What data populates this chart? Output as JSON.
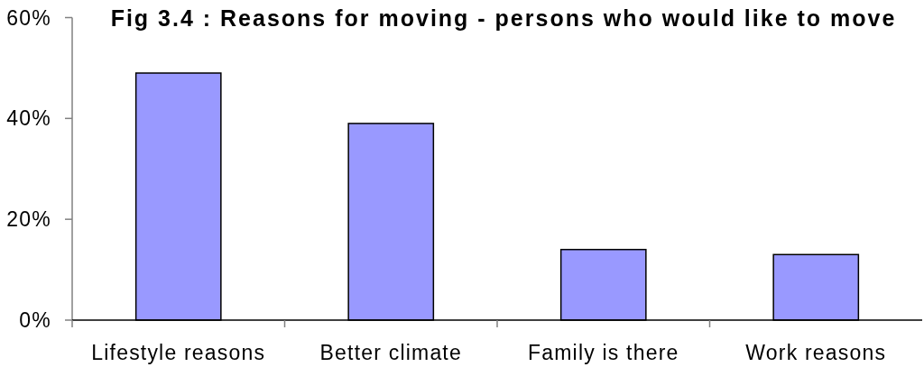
{
  "chart_data": {
    "type": "bar",
    "title": "Fig 3.4 : Reasons for moving - persons who would like to move",
    "categories": [
      "Lifestyle reasons",
      "Better climate",
      "Family is there",
      "Work reasons"
    ],
    "values": [
      49,
      39,
      14,
      13
    ],
    "color": "#9999ff",
    "ylim": [
      0,
      60
    ],
    "yticks": [
      {
        "value": 0,
        "label": "0%"
      },
      {
        "value": 20,
        "label": "20%"
      },
      {
        "value": 40,
        "label": "40%"
      },
      {
        "value": 60,
        "label": "60%"
      }
    ]
  }
}
